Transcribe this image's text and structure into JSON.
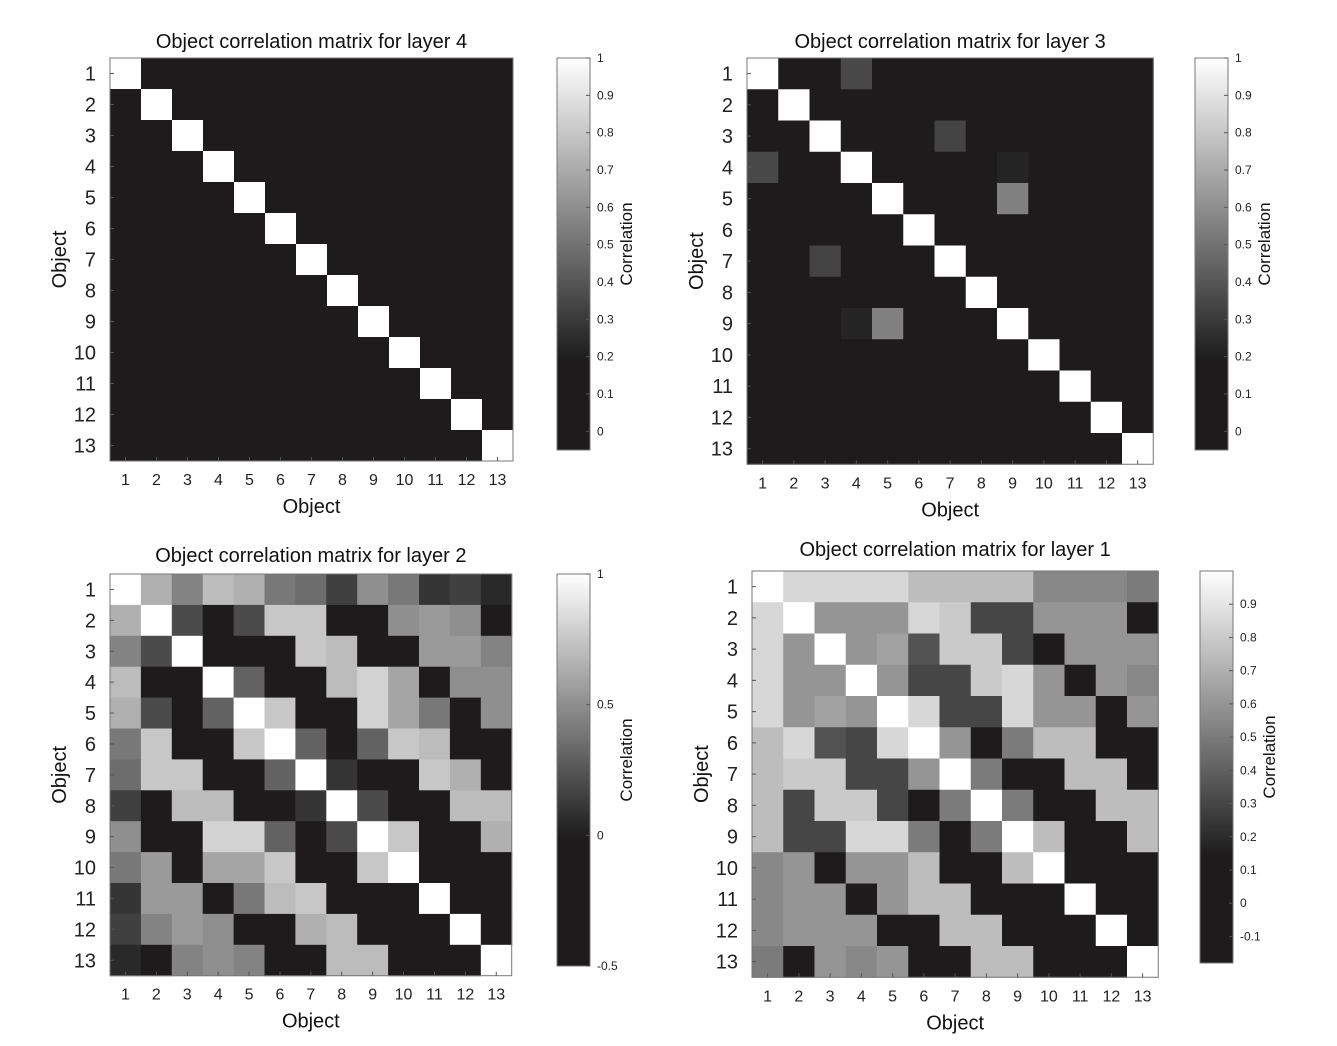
{
  "chart_data": [
    {
      "type": "heatmap",
      "title": "Object correlation matrix for layer 4",
      "xlabel": "Object",
      "ylabel": "Object",
      "colorbar_label": "Correlation",
      "colormap": "gray-black-below-0.2",
      "categories": [
        "1",
        "2",
        "3",
        "4",
        "5",
        "6",
        "7",
        "8",
        "9",
        "10",
        "11",
        "12",
        "13"
      ],
      "clim": [
        -0.05,
        1
      ],
      "colorbar_ticks": [
        {
          "value": 1,
          "label": "1"
        },
        {
          "value": 0.9,
          "label": "0.9"
        },
        {
          "value": 0.8,
          "label": "0.8"
        },
        {
          "value": 0.7,
          "label": "0.7"
        },
        {
          "value": 0.6,
          "label": "0.6"
        },
        {
          "value": 0.5,
          "label": "0.5"
        },
        {
          "value": 0.4,
          "label": "0.4"
        },
        {
          "value": 0.3,
          "label": "0.3"
        },
        {
          "value": 0.2,
          "label": "0.2"
        },
        {
          "value": 0.1,
          "label": "0.1"
        },
        {
          "value": 0,
          "label": "0"
        }
      ],
      "values": [
        [
          1,
          0,
          0,
          0,
          0,
          0,
          0,
          0,
          0,
          0,
          0,
          0,
          0
        ],
        [
          0,
          1,
          0,
          0,
          0,
          0,
          0,
          0,
          0,
          0,
          0,
          0,
          0
        ],
        [
          0,
          0,
          1,
          0,
          0,
          0,
          0,
          0,
          0,
          0,
          0,
          0,
          0
        ],
        [
          0,
          0,
          0,
          1,
          0,
          0,
          0,
          0,
          0,
          0,
          0,
          0,
          0
        ],
        [
          0,
          0,
          0,
          0,
          1,
          0,
          0,
          0,
          0,
          0,
          0,
          0,
          0
        ],
        [
          0,
          0,
          0,
          0,
          0,
          1,
          0,
          0,
          0,
          0,
          0,
          0,
          0
        ],
        [
          0,
          0,
          0,
          0,
          0,
          0,
          1,
          0,
          0,
          0,
          0,
          0,
          0
        ],
        [
          0,
          0,
          0,
          0,
          0,
          0,
          0,
          1,
          0,
          0,
          0,
          0,
          0
        ],
        [
          0,
          0,
          0,
          0,
          0,
          0,
          0,
          0,
          1,
          0,
          0,
          0,
          0
        ],
        [
          0,
          0,
          0,
          0,
          0,
          0,
          0,
          0,
          0,
          1,
          0,
          0,
          0
        ],
        [
          0,
          0,
          0,
          0,
          0,
          0,
          0,
          0,
          0,
          0,
          1,
          0,
          0
        ],
        [
          0,
          0,
          0,
          0,
          0,
          0,
          0,
          0,
          0,
          0,
          0,
          1,
          0
        ],
        [
          0,
          0,
          0,
          0,
          0,
          0,
          0,
          0,
          0,
          0,
          0,
          0,
          1
        ]
      ]
    },
    {
      "type": "heatmap",
      "title": "Object correlation matrix for layer 3",
      "xlabel": "Object",
      "ylabel": "Object",
      "colorbar_label": "Correlation",
      "colormap": "gray-black-below-0.2",
      "categories": [
        "1",
        "2",
        "3",
        "4",
        "5",
        "6",
        "7",
        "8",
        "9",
        "10",
        "11",
        "12",
        "13"
      ],
      "clim": [
        -0.05,
        1
      ],
      "colorbar_ticks": [
        {
          "value": 1,
          "label": "1"
        },
        {
          "value": 0.9,
          "label": "0.9"
        },
        {
          "value": 0.8,
          "label": "0.8"
        },
        {
          "value": 0.7,
          "label": "0.7"
        },
        {
          "value": 0.6,
          "label": "0.6"
        },
        {
          "value": 0.5,
          "label": "0.5"
        },
        {
          "value": 0.4,
          "label": "0.4"
        },
        {
          "value": 0.3,
          "label": "0.3"
        },
        {
          "value": 0.2,
          "label": "0.2"
        },
        {
          "value": 0.1,
          "label": "0.1"
        },
        {
          "value": 0,
          "label": "0"
        }
      ],
      "values": [
        [
          1,
          0,
          0,
          0.35,
          0,
          0,
          0,
          0,
          0,
          0,
          0,
          0,
          0
        ],
        [
          0,
          1,
          0,
          0,
          0,
          0,
          0,
          0,
          0,
          0,
          0,
          0,
          0
        ],
        [
          0,
          0,
          1,
          0,
          0,
          0,
          0.33,
          0,
          0,
          0,
          0,
          0,
          0
        ],
        [
          0.35,
          0,
          0,
          1,
          0,
          0,
          0,
          0,
          0.22,
          0,
          0,
          0,
          0
        ],
        [
          0,
          0,
          0,
          0,
          1,
          0,
          0,
          0,
          0.55,
          0,
          0,
          0,
          0
        ],
        [
          0,
          0,
          0,
          0,
          0,
          1,
          0,
          0,
          0,
          0,
          0,
          0,
          0
        ],
        [
          0,
          0,
          0.33,
          0,
          0,
          0,
          1,
          0,
          0,
          0,
          0,
          0,
          0
        ],
        [
          0,
          0,
          0,
          0,
          0,
          0,
          0,
          1,
          0,
          0,
          0,
          0,
          0
        ],
        [
          0,
          0,
          0,
          0.22,
          0.55,
          0,
          0,
          0,
          1,
          0,
          0,
          0,
          0
        ],
        [
          0,
          0,
          0,
          0,
          0,
          0,
          0,
          0,
          0,
          1,
          0,
          0,
          0
        ],
        [
          0,
          0,
          0,
          0,
          0,
          0,
          0,
          0,
          0,
          0,
          1,
          0,
          0
        ],
        [
          0,
          0,
          0,
          0,
          0,
          0,
          0,
          0,
          0,
          0,
          0,
          1,
          0
        ],
        [
          0,
          0,
          0,
          0,
          0,
          0,
          0,
          0,
          0,
          0,
          0,
          0,
          1
        ]
      ]
    },
    {
      "type": "heatmap",
      "title": "Object correlation matrix for layer 2",
      "xlabel": "Object",
      "ylabel": "Object",
      "colorbar_label": "Correlation",
      "colormap": "gray-black-below-0",
      "categories": [
        "1",
        "2",
        "3",
        "4",
        "5",
        "6",
        "7",
        "8",
        "9",
        "10",
        "11",
        "12",
        "13"
      ],
      "clim": [
        -0.5,
        1
      ],
      "colorbar_ticks": [
        {
          "value": 1,
          "label": "1"
        },
        {
          "value": 0.5,
          "label": "0.5"
        },
        {
          "value": 0,
          "label": "0"
        },
        {
          "value": -0.5,
          "label": "-0.5"
        }
      ],
      "values": [
        [
          1,
          0.65,
          0.45,
          0.7,
          0.65,
          0.4,
          0.35,
          0.15,
          0.5,
          0.4,
          0.1,
          0.15,
          0.05
        ],
        [
          0.65,
          1,
          0.2,
          0,
          0.2,
          0.75,
          0.75,
          0,
          0,
          0.5,
          0.55,
          0.5,
          0
        ],
        [
          0.45,
          0.2,
          1,
          0,
          0,
          0,
          0.75,
          0.7,
          0,
          0,
          0.55,
          0.55,
          0.45
        ],
        [
          0.7,
          0,
          0,
          1,
          0.3,
          0,
          0,
          0.7,
          0.8,
          0.6,
          0,
          0.5,
          0.5
        ],
        [
          0.65,
          0.2,
          0,
          0.3,
          1,
          0.75,
          0,
          0,
          0.8,
          0.6,
          0.4,
          0,
          0.5
        ],
        [
          0.4,
          0.75,
          0,
          0,
          0.75,
          1,
          0.3,
          0,
          0.3,
          0.75,
          0.7,
          0,
          0
        ],
        [
          0.35,
          0.75,
          0.75,
          0,
          0,
          0.3,
          1,
          0.1,
          0,
          0,
          0.75,
          0.65,
          0
        ],
        [
          0.15,
          0,
          0.7,
          0.7,
          0,
          0,
          0.1,
          1,
          0.2,
          0,
          0,
          0.7,
          0.7
        ],
        [
          0.5,
          0,
          0,
          0.8,
          0.8,
          0.3,
          0,
          0.2,
          1,
          0.75,
          0,
          0,
          0.65
        ],
        [
          0.4,
          0.55,
          0,
          0.6,
          0.6,
          0.75,
          0,
          0,
          0.75,
          1,
          0,
          0,
          0
        ],
        [
          0.1,
          0.55,
          0.55,
          0,
          0.4,
          0.7,
          0.75,
          0,
          0,
          0,
          1,
          0,
          0
        ],
        [
          0.15,
          0.45,
          0.55,
          0.5,
          0,
          0,
          0.65,
          0.7,
          0,
          0,
          0,
          1,
          0
        ],
        [
          0.05,
          0,
          0.45,
          0.5,
          0.45,
          0,
          0,
          0.7,
          0.7,
          0,
          0,
          0,
          1
        ]
      ]
    },
    {
      "type": "heatmap",
      "title": "Object correlation matrix for layer 1",
      "xlabel": "Object",
      "ylabel": "Object",
      "colorbar_label": "Correlation",
      "colormap": "gray-black-below-0.15",
      "categories": [
        "1",
        "2",
        "3",
        "4",
        "5",
        "6",
        "7",
        "8",
        "9",
        "10",
        "11",
        "12",
        "13"
      ],
      "clim": [
        -0.18,
        1
      ],
      "colorbar_ticks": [
        {
          "value": 0.9,
          "label": "0.9"
        },
        {
          "value": 0.8,
          "label": "0.8"
        },
        {
          "value": 0.7,
          "label": "0.7"
        },
        {
          "value": 0.6,
          "label": "0.6"
        },
        {
          "value": 0.5,
          "label": "0.5"
        },
        {
          "value": 0.4,
          "label": "0.4"
        },
        {
          "value": 0.3,
          "label": "0.3"
        },
        {
          "value": 0.2,
          "label": "0.2"
        },
        {
          "value": 0.1,
          "label": "0.1"
        },
        {
          "value": 0,
          "label": "0"
        },
        {
          "value": -0.1,
          "label": "-0.1"
        }
      ],
      "values": [
        [
          1,
          0.85,
          0.85,
          0.85,
          0.85,
          0.75,
          0.75,
          0.75,
          0.75,
          0.55,
          0.55,
          0.55,
          0.5
        ],
        [
          0.85,
          1,
          0.6,
          0.6,
          0.6,
          0.85,
          0.8,
          0.3,
          0.3,
          0.6,
          0.6,
          0.6,
          -0.1
        ],
        [
          0.85,
          0.6,
          1,
          0.6,
          0.65,
          0.35,
          0.8,
          0.8,
          0.3,
          -0.1,
          0.6,
          0.6,
          0.6
        ],
        [
          0.85,
          0.6,
          0.6,
          1,
          0.6,
          0.3,
          0.3,
          0.8,
          0.85,
          0.6,
          -0.1,
          0.6,
          0.55
        ],
        [
          0.85,
          0.6,
          0.65,
          0.6,
          1,
          0.85,
          0.3,
          0.3,
          0.85,
          0.6,
          0.6,
          -0.1,
          0.6
        ],
        [
          0.75,
          0.85,
          0.35,
          0.3,
          0.85,
          1,
          0.6,
          -0.1,
          0.5,
          0.75,
          0.75,
          -0.1,
          -0.1
        ],
        [
          0.75,
          0.8,
          0.8,
          0.3,
          0.3,
          0.6,
          1,
          0.5,
          -0.1,
          -0.1,
          0.75,
          0.75,
          -0.1
        ],
        [
          0.75,
          0.3,
          0.8,
          0.8,
          0.3,
          -0.1,
          0.5,
          1,
          0.5,
          -0.1,
          -0.1,
          0.75,
          0.75
        ],
        [
          0.75,
          0.3,
          0.3,
          0.85,
          0.85,
          0.5,
          -0.1,
          0.5,
          1,
          0.75,
          -0.1,
          -0.1,
          0.75
        ],
        [
          0.55,
          0.6,
          -0.1,
          0.6,
          0.6,
          0.75,
          -0.1,
          -0.1,
          0.75,
          1,
          -0.1,
          -0.1,
          -0.1
        ],
        [
          0.55,
          0.6,
          0.6,
          -0.1,
          0.6,
          0.75,
          0.75,
          -0.1,
          -0.1,
          -0.1,
          1,
          -0.1,
          -0.1
        ],
        [
          0.55,
          0.6,
          0.6,
          0.6,
          -0.1,
          -0.1,
          0.75,
          0.75,
          -0.1,
          -0.1,
          -0.1,
          1,
          -0.1
        ],
        [
          0.5,
          -0.1,
          0.6,
          0.55,
          0.6,
          -0.1,
          -0.1,
          0.75,
          0.75,
          -0.1,
          -0.1,
          -0.1,
          1
        ]
      ]
    }
  ]
}
